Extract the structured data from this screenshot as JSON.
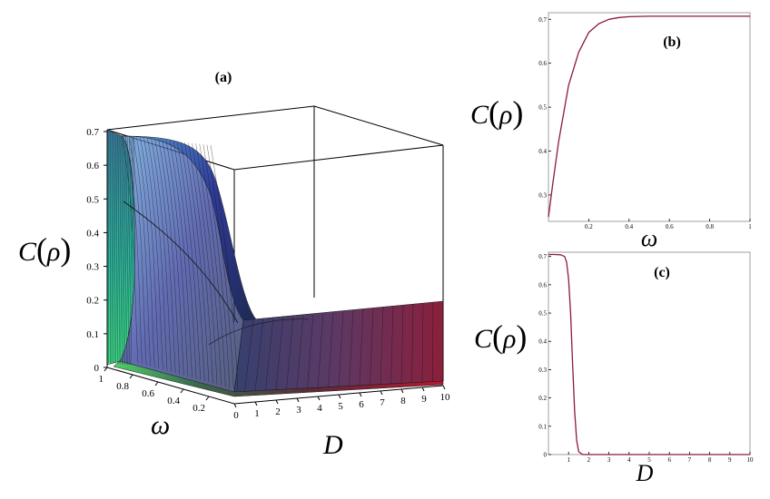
{
  "panels": {
    "a": {
      "label": "(a)",
      "zlabel_pre": "C",
      "zlabel_sym": "ρ",
      "xlabel": "ω",
      "ylabel": "D",
      "z_ticks": [
        "0",
        "0.1",
        "0.2",
        "0.3",
        "0.4",
        "0.5",
        "0.6",
        "0.7"
      ],
      "w_ticks": [
        "1",
        "0.8",
        "0.6",
        "0.4",
        "0.2"
      ],
      "d_ticks": [
        "0",
        "1",
        "2",
        "3",
        "4",
        "5",
        "6",
        "7",
        "8",
        "9",
        "10"
      ]
    },
    "b": {
      "label": "(b)",
      "ylabel_pre": "C",
      "ylabel_sym": "ρ",
      "xlabel": "ω",
      "x_ticks": [
        "0.2",
        "0.4",
        "0.6",
        "0.8",
        "1"
      ],
      "y_ticks": [
        "0.3",
        "0.4",
        "0.5",
        "0.6",
        "0.7"
      ]
    },
    "c": {
      "label": "(c)",
      "ylabel_pre": "C",
      "ylabel_sym": "ρ",
      "xlabel": "D",
      "x_ticks": [
        "1",
        "2",
        "3",
        "4",
        "5",
        "6",
        "7",
        "8",
        "9",
        "10"
      ],
      "y_ticks": [
        "0",
        "0.1",
        "0.2",
        "0.3",
        "0.4",
        "0.5",
        "0.6",
        "0.7"
      ]
    }
  },
  "colors": {
    "curve": "#8B1A3C",
    "axis": "#000000"
  },
  "chart_data": [
    {
      "type": "surface",
      "panel": "a",
      "x_variable": "D",
      "y_variable": "ω",
      "z_variable": "C(ρ)",
      "xlim": [
        0,
        10
      ],
      "ylim": [
        0,
        1
      ],
      "zlim": [
        0,
        0.7
      ],
      "description_points": [
        {
          "D": 0,
          "omega": 1,
          "C": 0.707
        },
        {
          "D": 0,
          "omega": 0.5,
          "C": 0.5
        },
        {
          "D": 0,
          "omega": 0,
          "C": 0.0
        },
        {
          "D": 10,
          "omega": 1,
          "C": 0.2
        },
        {
          "D": 10,
          "omega": 0,
          "C": 0.0
        },
        {
          "D": 2,
          "omega": 1,
          "C": 0.14
        }
      ]
    },
    {
      "type": "line",
      "panel": "b",
      "x": [
        0,
        0.02,
        0.05,
        0.1,
        0.15,
        0.2,
        0.25,
        0.3,
        0.35,
        0.4,
        0.5,
        0.6,
        0.7,
        0.8,
        0.9,
        1.0
      ],
      "y": [
        0.25,
        0.32,
        0.42,
        0.55,
        0.625,
        0.67,
        0.69,
        0.7,
        0.704,
        0.706,
        0.707,
        0.707,
        0.707,
        0.707,
        0.707,
        0.707
      ],
      "xlim": [
        0,
        1
      ],
      "ylim": [
        0.24,
        0.715
      ]
    },
    {
      "type": "line",
      "panel": "c",
      "x": [
        0,
        0.3,
        0.6,
        0.8,
        0.9,
        1.0,
        1.1,
        1.2,
        1.3,
        1.4,
        1.5,
        1.7,
        2,
        3,
        4,
        5,
        6,
        7,
        8,
        9,
        10
      ],
      "y": [
        0.707,
        0.707,
        0.706,
        0.7,
        0.68,
        0.62,
        0.5,
        0.32,
        0.15,
        0.05,
        0.01,
        0.0,
        0.0,
        0.0,
        0.0,
        0.0,
        0.0,
        0.0,
        0.0,
        0.0,
        0.0
      ],
      "xlim": [
        0,
        10
      ],
      "ylim": [
        0,
        0.715
      ]
    }
  ]
}
